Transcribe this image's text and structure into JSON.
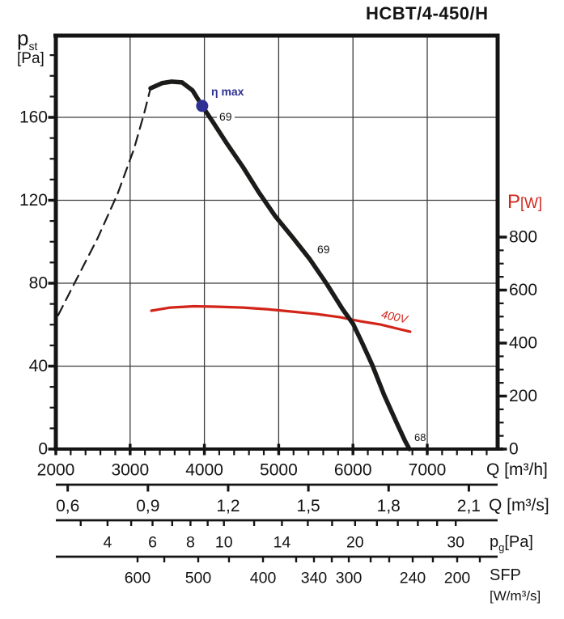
{
  "labels": {
    "title": "HCBT/4-450/H",
    "pst_p": "p",
    "pst_sub": "st",
    "pst_unit": "[Pa]",
    "pw_p": "P",
    "pw_unit": "[W]",
    "q_m3h": "Q [m³/h]",
    "q_m3s": "Q [m³/s]",
    "pg_p": "p",
    "pg_sub": "g",
    "pg_unit": "[Pa]",
    "sfp": "SFP",
    "sfp_unit": "[W/m³/s]",
    "eta_max": "η max",
    "eff_69_top": "69",
    "eff_69_mid": "69",
    "eff_68": "68",
    "volt_400": "400V"
  },
  "colors": {
    "curve": "#1b1b19",
    "power": "#d2251a",
    "eta": "#2e3192",
    "grid": "#3c3c3c",
    "axis": "#141414"
  },
  "chart_data": {
    "type": "line",
    "title": "HCBT/4-450/H",
    "axes": {
      "x_bottom": {
        "label": "Q [m³/h]",
        "range": [
          2000,
          7950
        ],
        "major_ticks": [
          2000,
          3000,
          4000,
          5000,
          6000,
          7000
        ],
        "minor_step": 200,
        "gridlines": [
          3000,
          4000,
          5000,
          6000,
          7000
        ]
      },
      "y_left": {
        "label": "p_st [Pa]",
        "range": [
          0,
          199
        ],
        "major_ticks": [
          0,
          40,
          80,
          120,
          160
        ],
        "minor_step": 10,
        "minor_max": 190,
        "gridlines": [
          40,
          80,
          120,
          160
        ]
      },
      "y_right": {
        "label": "P [W]",
        "range": [
          0,
          800
        ],
        "major_ticks": [
          0,
          200,
          400,
          600,
          800
        ],
        "minor_step": 50
      },
      "x_q_m3s": {
        "label": "Q [m³/s]",
        "ticks": [
          0.6,
          0.9,
          1.2,
          1.5,
          1.8,
          2.1
        ],
        "tick_labels": [
          "0,6",
          "0,9",
          "1,2",
          "1,5",
          "1,8",
          "2,1"
        ]
      },
      "x_pg": {
        "label": "pg [Pa]",
        "ticks": [
          3,
          4,
          5,
          6,
          7,
          8,
          9,
          10,
          12,
          14,
          16,
          18,
          20,
          22,
          24,
          26,
          28,
          30
        ],
        "labeled_ticks": [
          4,
          6,
          8,
          10,
          14,
          20,
          30
        ],
        "q_per_sqrt_pa": 1348
      },
      "x_sfp": {
        "label": "SFP [W/m³/s]",
        "ticks": [
          {
            "sfp": 600,
            "q": 3100,
            "show": true
          },
          {
            "sfp": 550,
            "q": 3460,
            "show": false
          },
          {
            "sfp": 500,
            "q": 3917,
            "show": true
          },
          {
            "sfp": 450,
            "q": 4331,
            "show": false
          },
          {
            "sfp": 400,
            "q": 4789,
            "show": true
          },
          {
            "sfp": 360,
            "q": 5235,
            "show": false
          },
          {
            "sfp": 340,
            "q": 5475,
            "show": true
          },
          {
            "sfp": 320,
            "q": 5715,
            "show": false
          },
          {
            "sfp": 300,
            "q": 5944,
            "show": true
          },
          {
            "sfp": 280,
            "q": 6238,
            "show": false
          },
          {
            "sfp": 260,
            "q": 6488,
            "show": false
          },
          {
            "sfp": 240,
            "q": 6804,
            "show": true
          },
          {
            "sfp": 220,
            "q": 7076,
            "show": false
          },
          {
            "sfp": 200,
            "q": 7403,
            "show": true
          },
          {
            "sfp": 185,
            "q": 7708,
            "show": false
          }
        ]
      }
    },
    "series": [
      {
        "name": "stall_line",
        "axis": "left",
        "style": "dashed",
        "width": 2.2,
        "color_key": "curve",
        "points": [
          [
            2030,
            64.5
          ],
          [
            2280,
            82
          ],
          [
            2560,
            101.5
          ],
          [
            2830,
            123
          ],
          [
            3050,
            144.5
          ],
          [
            3190,
            162
          ],
          [
            3274,
            174
          ]
        ]
      },
      {
        "name": "power_curve_400V",
        "axis": "right",
        "style": "solid",
        "width": 3.2,
        "color_key": "power",
        "points": [
          [
            3285,
            522
          ],
          [
            3540,
            534
          ],
          [
            3860,
            539
          ],
          [
            4190,
            537
          ],
          [
            4520,
            534
          ],
          [
            4840,
            528
          ],
          [
            5170,
            519
          ],
          [
            5500,
            510
          ],
          [
            5820,
            498
          ],
          [
            6100,
            482
          ],
          [
            6370,
            470
          ],
          [
            6590,
            455
          ],
          [
            6770,
            443
          ]
        ]
      },
      {
        "name": "fan_pressure_curve",
        "axis": "left",
        "style": "solid",
        "width": 5.5,
        "color_key": "curve",
        "points": [
          [
            3274,
            174
          ],
          [
            3430,
            176.5
          ],
          [
            3560,
            177.2
          ],
          [
            3700,
            176.8
          ],
          [
            3840,
            173
          ],
          [
            3970,
            165.5
          ],
          [
            4110,
            158
          ],
          [
            4300,
            147.5
          ],
          [
            4520,
            136
          ],
          [
            4730,
            124
          ],
          [
            4950,
            112.5
          ],
          [
            5200,
            101.5
          ],
          [
            5420,
            91.5
          ],
          [
            5640,
            80
          ],
          [
            5860,
            67.5
          ],
          [
            6000,
            60.5
          ],
          [
            6120,
            51.5
          ],
          [
            6260,
            40.5
          ],
          [
            6420,
            26
          ],
          [
            6590,
            12.5
          ],
          [
            6700,
            4
          ],
          [
            6760,
            0
          ]
        ]
      }
    ],
    "point_marker": {
      "label": "η max",
      "q": 3970,
      "p": 165.5,
      "radius": 7.5
    }
  }
}
